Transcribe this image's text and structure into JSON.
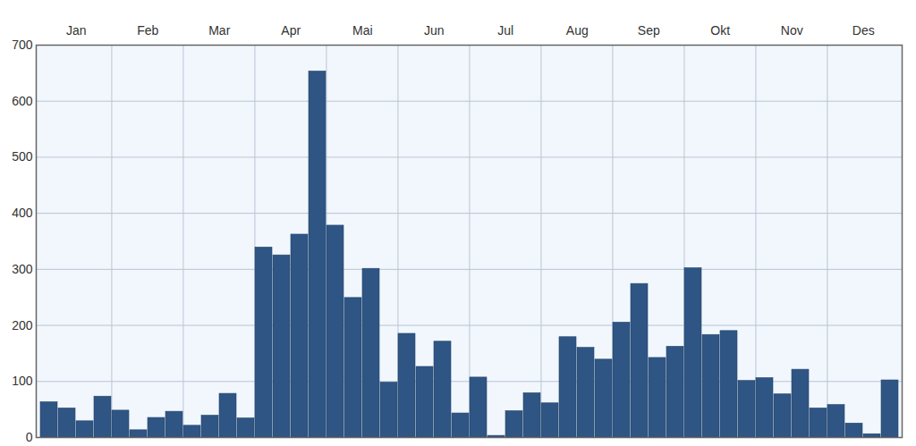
{
  "chart_data": {
    "type": "bar",
    "categories": [
      "Jan",
      null,
      null,
      null,
      "Feb",
      null,
      null,
      null,
      "Mar",
      null,
      null,
      null,
      "Apr",
      null,
      null,
      null,
      "Mai",
      null,
      null,
      null,
      "Jun",
      null,
      null,
      null,
      "Jul",
      null,
      null,
      null,
      "Aug",
      null,
      null,
      null,
      "Sep",
      null,
      null,
      null,
      "Okt",
      null,
      null,
      null,
      "Nov",
      null,
      null,
      null,
      "Des",
      null,
      null,
      null
    ],
    "values": [
      63,
      52,
      29,
      73,
      48,
      13,
      35,
      46,
      21,
      39,
      78,
      34,
      339,
      325,
      362,
      653,
      378,
      249,
      301,
      98,
      185,
      126,
      171,
      43,
      107,
      3,
      47,
      79,
      61,
      179,
      160,
      139,
      205,
      274,
      142,
      162,
      302,
      183,
      190,
      101,
      106,
      77,
      121,
      52,
      58,
      25,
      6,
      102
    ],
    "color": "#2e5583",
    "ylim": [
      0,
      700
    ],
    "yticks": [
      0,
      100,
      200,
      300,
      400,
      500,
      600,
      700
    ],
    "grid": true
  }
}
